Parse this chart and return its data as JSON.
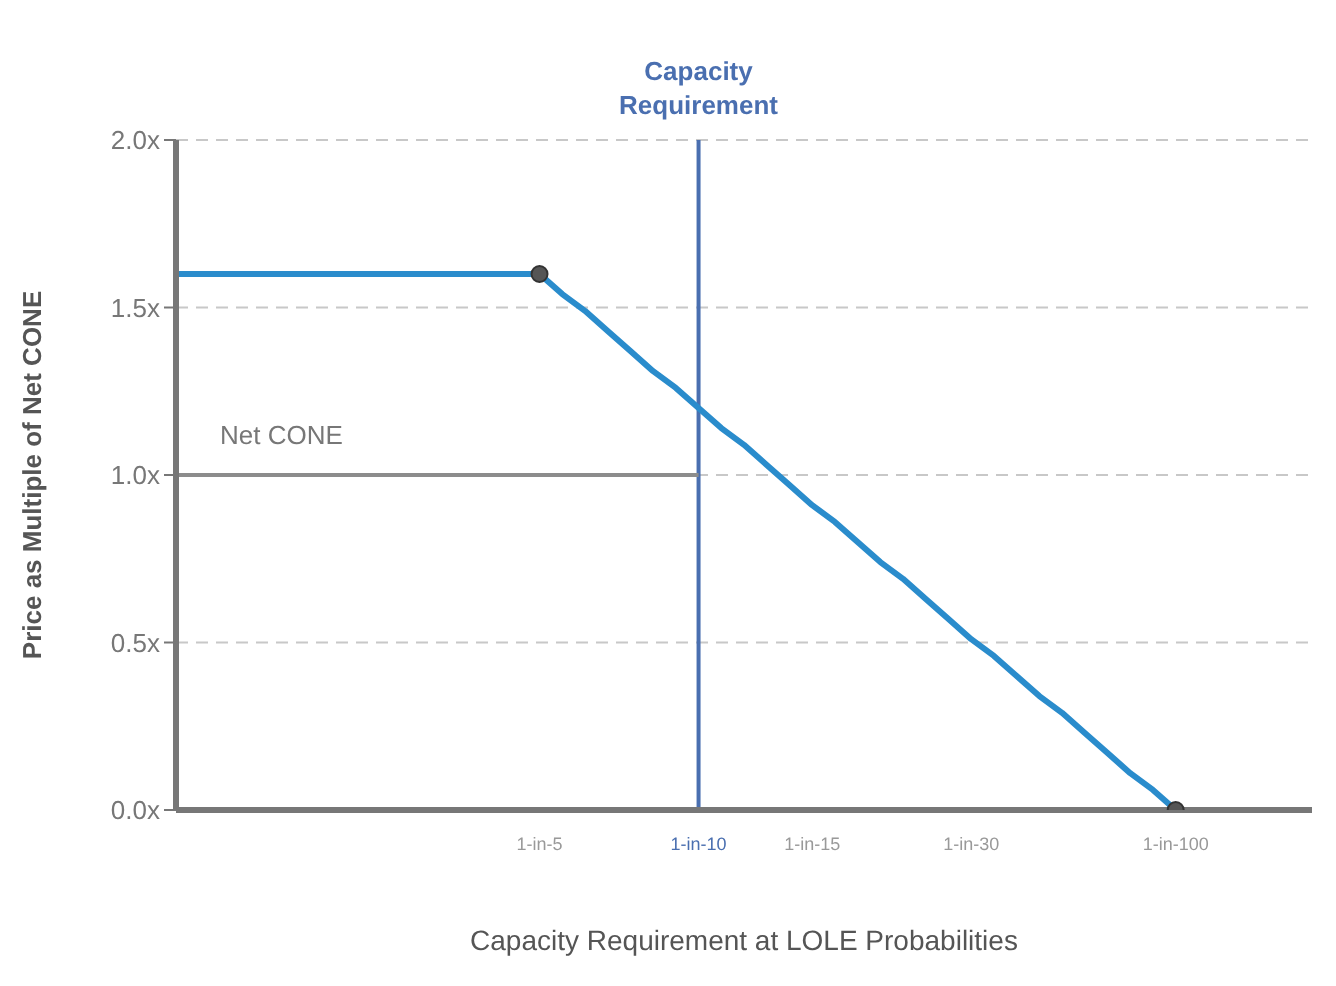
{
  "chart_data": {
    "type": "line",
    "xlabel": "Capacity Requirement  at LOLE Probabilities",
    "ylabel": "Price as Multiple of Net CONE",
    "categories": [
      null,
      null,
      null,
      null,
      null,
      null,
      null,
      null,
      null,
      null,
      null,
      null,
      null,
      null,
      null,
      null,
      "1-in-5",
      null,
      null,
      null,
      null,
      null,
      null,
      "1-in-10",
      null,
      null,
      null,
      null,
      "1-in-15",
      null,
      null,
      null,
      null,
      null,
      null,
      "1-in-30",
      null,
      null,
      null,
      null,
      null,
      null,
      null,
      null,
      "1-in-100",
      null,
      null,
      null,
      null,
      null,
      null
    ],
    "ylim": [
      0,
      2
    ],
    "yticks": [
      {
        "value": 0,
        "label": "0.0x"
      },
      {
        "value": 0.5,
        "label": "0.5x"
      },
      {
        "value": 1,
        "label": "1.0x"
      },
      {
        "value": 1.5,
        "label": "1.5x"
      },
      {
        "value": 2,
        "label": "2.0x"
      }
    ],
    "grid": "y",
    "series": [
      {
        "color": "#2a8ccc",
        "values": [
          1.6,
          1.6,
          1.6,
          1.6,
          1.6,
          1.6,
          1.6,
          1.6,
          1.6,
          1.6,
          1.6,
          1.6,
          1.6,
          1.6,
          1.6,
          1.6,
          1.6,
          1.54,
          1.49,
          1.43,
          1.37,
          1.31,
          1.26,
          1.2,
          1.14,
          1.09,
          1.03,
          0.97,
          0.91,
          0.86,
          0.8,
          0.74,
          0.69,
          0.63,
          0.57,
          0.51,
          0.46,
          0.4,
          0.34,
          0.29,
          0.23,
          0.17,
          0.11,
          0.06,
          0,
          null,
          null,
          null,
          null,
          null,
          null
        ]
      },
      {
        "type": "scatter",
        "marker": "circle",
        "color": "#555555",
        "values": [
          null,
          null,
          null,
          null,
          null,
          null,
          null,
          null,
          null,
          null,
          null,
          null,
          null,
          null,
          null,
          null,
          1.6,
          null,
          null,
          null,
          null,
          null,
          null,
          null,
          null,
          null,
          null,
          null,
          null,
          null,
          null,
          null,
          null,
          null,
          null,
          null,
          null,
          null,
          null,
          null,
          null,
          null,
          null,
          null,
          0,
          null,
          null,
          null,
          null,
          null,
          null
        ]
      },
      {
        "name": "Net CONE",
        "color": "#8c8c8c",
        "values": [
          1,
          1,
          1,
          1,
          1,
          1,
          1,
          1,
          1,
          1,
          1,
          1,
          1,
          1,
          1,
          1,
          1,
          1,
          1,
          1,
          1,
          1,
          1,
          1,
          null,
          null,
          null,
          null,
          null,
          null,
          null,
          null,
          null,
          null,
          null,
          null,
          null,
          null,
          null,
          null,
          null,
          null,
          null,
          null,
          null,
          null,
          null,
          null,
          null,
          null,
          null
        ]
      }
    ],
    "ref_lines": [
      {
        "axis": "x",
        "value": "1-in-10",
        "label": "Capacity Requirement",
        "color": "#4a6fb0"
      }
    ]
  }
}
